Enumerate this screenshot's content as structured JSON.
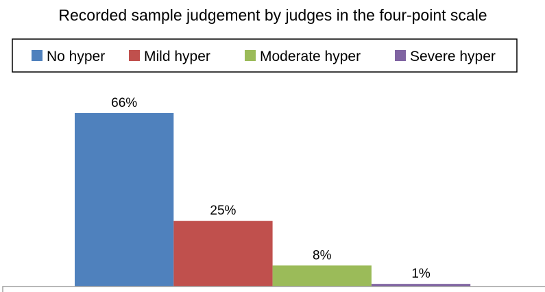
{
  "chart_data": {
    "type": "bar",
    "title": "Recorded sample judgement by judges in the four-point scale",
    "categories": [
      "No hyper",
      "Mild hyper",
      "Moderate hyper",
      "Severe hyper"
    ],
    "values": [
      66,
      25,
      8,
      1
    ],
    "value_labels": [
      "66%",
      "25%",
      "8%",
      "1%"
    ],
    "colors": [
      "#4F81BD",
      "#C0504D",
      "#9BBB59",
      "#8064A2"
    ],
    "unit": "%",
    "legend": "top",
    "grid": false,
    "ylim": [
      0,
      66
    ]
  }
}
